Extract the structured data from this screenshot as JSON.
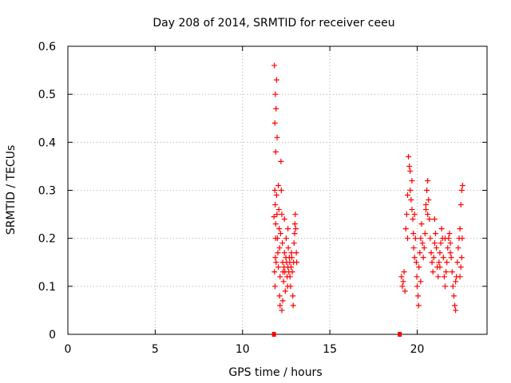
{
  "chart_data": {
    "type": "scatter",
    "title": "Day 208 of 2014, SRMTID for receiver ceeu",
    "xlabel": "GPS time / hours",
    "ylabel": "SRMTID / TECUs",
    "xlim": [
      0,
      24
    ],
    "ylim": [
      0,
      0.6
    ],
    "xticks": [
      0,
      5,
      10,
      15,
      20
    ],
    "yticks": [
      0,
      0.1,
      0.2,
      0.3,
      0.4,
      0.5,
      0.6
    ],
    "xtick_labels": [
      "0",
      "5",
      "10",
      "15",
      "20"
    ],
    "ytick_labels": [
      "0",
      "0.1",
      "0.2",
      "0.3",
      "0.4",
      "0.5",
      "0.6"
    ],
    "grid": true,
    "marker": "+",
    "color": "#ff0000",
    "zero_markers": [
      11.8,
      19.0
    ],
    "series": [
      {
        "points": [
          [
            11.8,
            0.245
          ],
          [
            11.82,
            0.56
          ],
          [
            11.85,
            0.44
          ],
          [
            11.88,
            0.5
          ],
          [
            11.9,
            0.38
          ],
          [
            11.92,
            0.47
          ],
          [
            11.95,
            0.53
          ],
          [
            11.98,
            0.41
          ],
          [
            11.85,
            0.3
          ],
          [
            11.87,
            0.27
          ],
          [
            11.9,
            0.2
          ],
          [
            11.88,
            0.16
          ],
          [
            11.83,
            0.13
          ],
          [
            11.86,
            0.1
          ],
          [
            11.95,
            0.29
          ],
          [
            11.97,
            0.25
          ],
          [
            12.0,
            0.2
          ],
          [
            12.02,
            0.17
          ],
          [
            12.05,
            0.14
          ],
          [
            12.05,
            0.31
          ],
          [
            12.08,
            0.26
          ],
          [
            12.1,
            0.22
          ],
          [
            12.12,
            0.18
          ],
          [
            12.15,
            0.12
          ],
          [
            12.12,
            0.08
          ],
          [
            12.15,
            0.06
          ],
          [
            12.18,
            0.21
          ],
          [
            12.2,
            0.36
          ],
          [
            12.22,
            0.3
          ],
          [
            12.25,
            0.25
          ],
          [
            12.28,
            0.19
          ],
          [
            12.3,
            0.15
          ],
          [
            12.32,
            0.13
          ],
          [
            12.35,
            0.11
          ],
          [
            12.38,
            0.14
          ],
          [
            12.4,
            0.17
          ],
          [
            12.42,
            0.13
          ],
          [
            12.45,
            0.09
          ],
          [
            12.48,
            0.16
          ],
          [
            12.5,
            0.2
          ],
          [
            12.52,
            0.15
          ],
          [
            12.55,
            0.12
          ],
          [
            12.58,
            0.1
          ],
          [
            12.6,
            0.14
          ],
          [
            12.62,
            0.18
          ],
          [
            12.65,
            0.13
          ],
          [
            12.68,
            0.16
          ],
          [
            12.7,
            0.15
          ],
          [
            12.72,
            0.12
          ],
          [
            12.75,
            0.1
          ],
          [
            12.78,
            0.14
          ],
          [
            12.8,
            0.17
          ],
          [
            12.82,
            0.16
          ],
          [
            12.85,
            0.13
          ],
          [
            12.88,
            0.08
          ],
          [
            12.9,
            0.06
          ],
          [
            12.92,
            0.15
          ],
          [
            12.95,
            0.19
          ],
          [
            12.98,
            0.21
          ],
          [
            13.0,
            0.23
          ],
          [
            13.02,
            0.25
          ],
          [
            13.05,
            0.22
          ],
          [
            13.08,
            0.17
          ],
          [
            13.1,
            0.15
          ],
          [
            12.3,
            0.07
          ],
          [
            12.25,
            0.05
          ],
          [
            12.6,
            0.22
          ],
          [
            12.4,
            0.24
          ],
          [
            11.9,
            0.23
          ],
          [
            11.92,
            0.15
          ],
          [
            19.1,
            0.12
          ],
          [
            19.15,
            0.1
          ],
          [
            19.2,
            0.11
          ],
          [
            19.25,
            0.13
          ],
          [
            19.3,
            0.09
          ],
          [
            19.35,
            0.22
          ],
          [
            19.4,
            0.25
          ],
          [
            19.45,
            0.2
          ],
          [
            19.5,
            0.37
          ],
          [
            19.55,
            0.35
          ],
          [
            19.6,
            0.3
          ],
          [
            19.65,
            0.28
          ],
          [
            19.7,
            0.26
          ],
          [
            19.75,
            0.24
          ],
          [
            19.78,
            0.21
          ],
          [
            19.8,
            0.18
          ],
          [
            19.85,
            0.16
          ],
          [
            19.9,
            0.2
          ],
          [
            19.95,
            0.15
          ],
          [
            19.98,
            0.12
          ],
          [
            20.0,
            0.1
          ],
          [
            20.05,
            0.08
          ],
          [
            20.08,
            0.06
          ],
          [
            20.1,
            0.14
          ],
          [
            20.15,
            0.17
          ],
          [
            20.2,
            0.2
          ],
          [
            20.25,
            0.23
          ],
          [
            20.3,
            0.19
          ],
          [
            20.35,
            0.16
          ],
          [
            20.4,
            0.18
          ],
          [
            20.45,
            0.21
          ],
          [
            20.5,
            0.26
          ],
          [
            20.55,
            0.3
          ],
          [
            20.6,
            0.32
          ],
          [
            20.65,
            0.28
          ],
          [
            20.7,
            0.24
          ],
          [
            20.75,
            0.2
          ],
          [
            20.8,
            0.17
          ],
          [
            20.85,
            0.15
          ],
          [
            20.9,
            0.13
          ],
          [
            20.95,
            0.16
          ],
          [
            21.0,
            0.19
          ],
          [
            21.05,
            0.21
          ],
          [
            21.1,
            0.18
          ],
          [
            21.15,
            0.14
          ],
          [
            21.2,
            0.12
          ],
          [
            21.25,
            0.15
          ],
          [
            21.3,
            0.17
          ],
          [
            21.35,
            0.19
          ],
          [
            21.4,
            0.22
          ],
          [
            21.45,
            0.2
          ],
          [
            21.5,
            0.16
          ],
          [
            21.55,
            0.12
          ],
          [
            21.6,
            0.1
          ],
          [
            21.65,
            0.13
          ],
          [
            21.7,
            0.15
          ],
          [
            21.75,
            0.18
          ],
          [
            21.8,
            0.2
          ],
          [
            21.85,
            0.21
          ],
          [
            21.9,
            0.19
          ],
          [
            21.95,
            0.16
          ],
          [
            22.0,
            0.13
          ],
          [
            22.05,
            0.1
          ],
          [
            22.1,
            0.08
          ],
          [
            22.15,
            0.06
          ],
          [
            22.2,
            0.05
          ],
          [
            22.25,
            0.12
          ],
          [
            22.3,
            0.15
          ],
          [
            22.35,
            0.18
          ],
          [
            22.4,
            0.2
          ],
          [
            22.45,
            0.22
          ],
          [
            22.5,
            0.27
          ],
          [
            22.55,
            0.3
          ],
          [
            22.6,
            0.31
          ],
          [
            22.58,
            0.2
          ],
          [
            22.55,
            0.16
          ],
          [
            22.5,
            0.14
          ],
          [
            22.45,
            0.12
          ],
          [
            20.5,
            0.27
          ],
          [
            20.6,
            0.25
          ],
          [
            19.6,
            0.34
          ],
          [
            19.7,
            0.32
          ],
          [
            19.85,
            0.25
          ],
          [
            20.2,
            0.11
          ],
          [
            21.0,
            0.24
          ],
          [
            21.3,
            0.14
          ],
          [
            21.6,
            0.2
          ],
          [
            21.9,
            0.17
          ],
          [
            22.2,
            0.11
          ],
          [
            19.45,
            0.29
          ]
        ]
      }
    ]
  }
}
